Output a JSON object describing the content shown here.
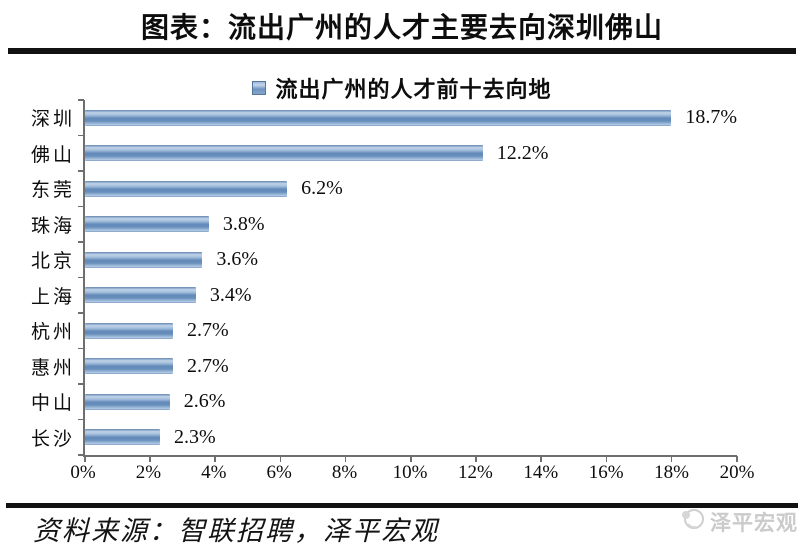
{
  "header": {
    "title": "图表：流出广州的人才主要去向深圳佛山"
  },
  "footer": {
    "source": "资料来源：智联招聘，泽平宏观",
    "watermark": "泽平宏观"
  },
  "colors": {
    "bar_fill": "#6f94bf",
    "bar_highlight": "#c0d3e9",
    "bar_shadow": "#6289b8",
    "axis": "#6f6f6f",
    "rule_black": "#121212",
    "watermark_gray": "#cbcbcb"
  },
  "chart_data": {
    "type": "bar",
    "orientation": "horizontal",
    "legend": [
      "流出广州的人才前十去向地"
    ],
    "legend_position": "top",
    "grid": "off",
    "categories": [
      "深圳",
      "佛山",
      "东莞",
      "珠海",
      "北京",
      "上海",
      "杭州",
      "惠州",
      "中山",
      "长沙"
    ],
    "values": [
      18.7,
      12.2,
      6.2,
      3.8,
      3.6,
      3.4,
      2.7,
      2.7,
      2.6,
      2.3
    ],
    "data_labels": [
      "18.7%",
      "12.2%",
      "6.2%",
      "3.8%",
      "3.6%",
      "3.4%",
      "2.7%",
      "2.7%",
      "2.6%",
      "2.3%"
    ],
    "xlim": [
      0,
      20
    ],
    "x_tick_step": 2,
    "x_tick_labels": [
      "0%",
      "2%",
      "4%",
      "6%",
      "8%",
      "10%",
      "12%",
      "14%",
      "16%",
      "18%",
      "20%"
    ]
  }
}
